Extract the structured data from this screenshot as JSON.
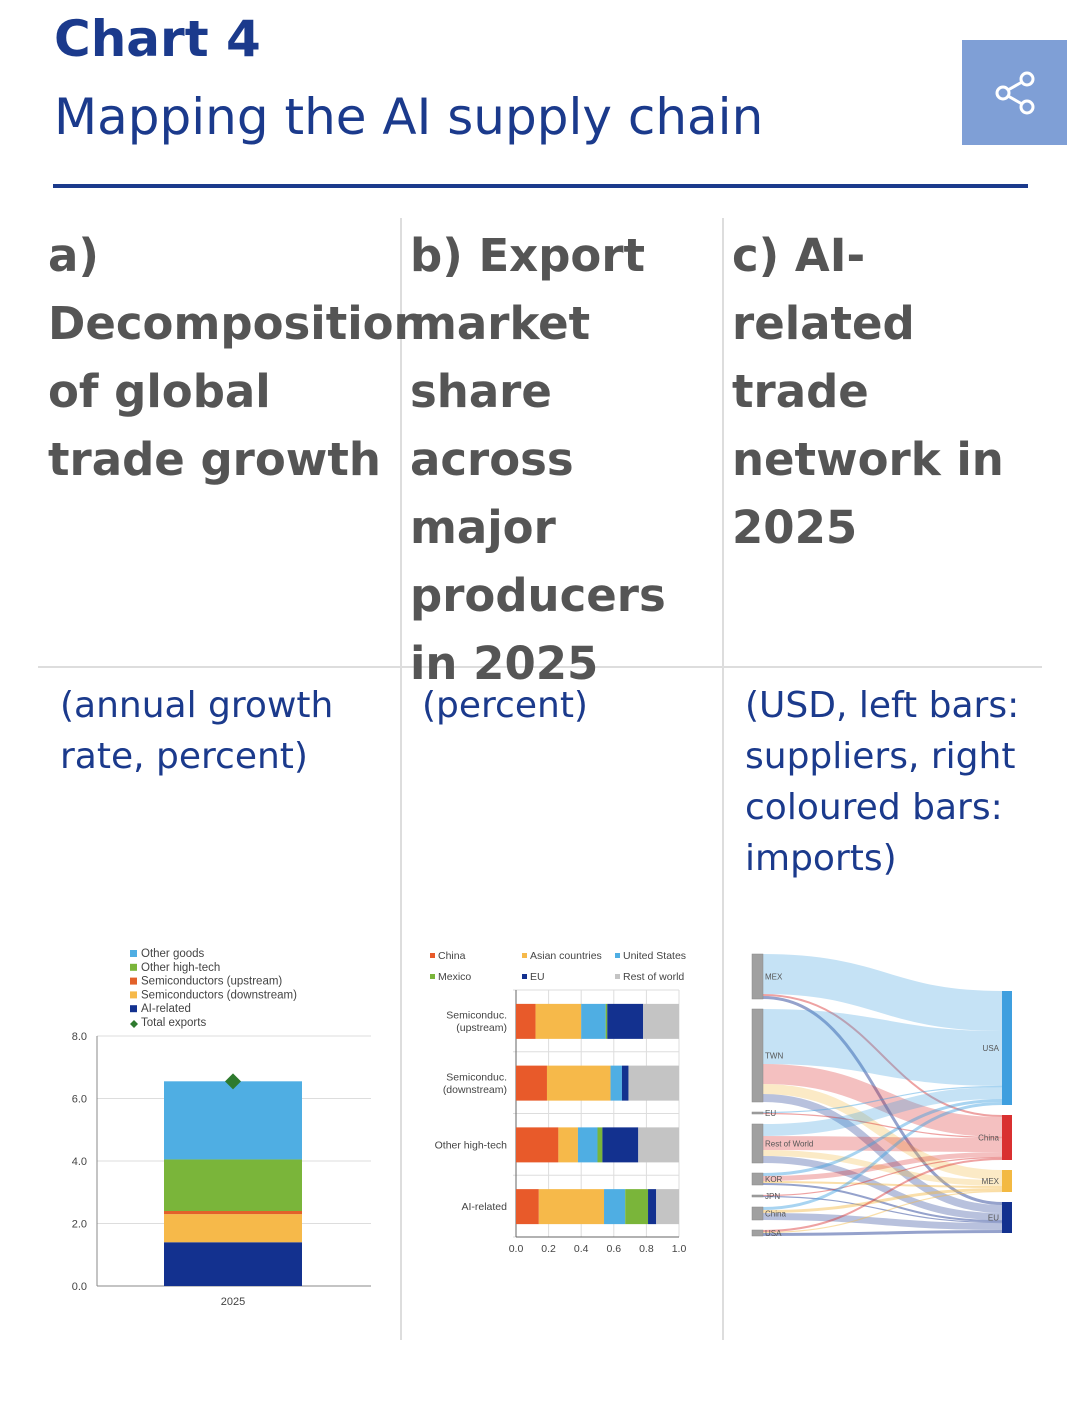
{
  "header": {
    "title": "Chart 4",
    "subtitle": "Mapping the AI supply chain",
    "share_icon": "share-icon",
    "accent": "#1b3a8c"
  },
  "panels": [
    {
      "heading": "a) Decomposition of global trade growth",
      "unit": "(annual growth rate, percent)"
    },
    {
      "heading": "b) Export market share across major producers in 2025",
      "unit": "(percent)"
    },
    {
      "heading": "c) AI-related trade network in 2025",
      "unit": "(USD, left bars: suppliers, right coloured bars: imports)"
    }
  ],
  "chart_data": [
    {
      "type": "bar",
      "stacked": true,
      "categories": [
        "2025"
      ],
      "series": [
        {
          "name": "AI-related",
          "values": [
            1.4
          ],
          "color": "#13318f"
        },
        {
          "name": "Semiconductors (downstream)",
          "values": [
            0.9
          ],
          "color": "#f6b94a"
        },
        {
          "name": "Semiconductors (upstream)",
          "values": [
            0.1
          ],
          "color": "#e2612a"
        },
        {
          "name": "Other high-tech",
          "values": [
            1.65
          ],
          "color": "#7ab53a"
        },
        {
          "name": "Other goods",
          "values": [
            2.5
          ],
          "color": "#4faee3"
        }
      ],
      "markers": [
        {
          "name": "Total exports",
          "values": [
            6.55
          ],
          "color": "#2e7a2e"
        }
      ],
      "legend_order": [
        "Other goods",
        "Other high-tech",
        "Semiconductors (upstream)",
        "Semiconductors (downstream)",
        "AI-related",
        "Total exports"
      ],
      "yticks": [
        "0.0",
        "2.0",
        "4.0",
        "6.0",
        "8.0"
      ],
      "ylim": [
        0,
        8
      ],
      "grid": true,
      "legend": "top-left"
    },
    {
      "type": "bar",
      "orientation": "horizontal",
      "stacked": true,
      "categories": [
        "Semiconduc. (upstream)",
        "Semiconduc. (downstream)",
        "Other high-tech",
        "AI-related"
      ],
      "series": [
        {
          "name": "China",
          "values": [
            0.12,
            0.19,
            0.26,
            0.14
          ],
          "color": "#e85a2a"
        },
        {
          "name": "Asian countries",
          "values": [
            0.28,
            0.39,
            0.12,
            0.4
          ],
          "color": "#f6b94a"
        },
        {
          "name": "United States",
          "values": [
            0.15,
            0.07,
            0.12,
            0.13
          ],
          "color": "#4faee3"
        },
        {
          "name": "Mexico",
          "values": [
            0.01,
            0.0,
            0.03,
            0.14
          ],
          "color": "#7ab53a"
        },
        {
          "name": "EU",
          "values": [
            0.22,
            0.04,
            0.22,
            0.05
          ],
          "color": "#13318f"
        },
        {
          "name": "Rest of world",
          "values": [
            0.22,
            0.31,
            0.25,
            0.14
          ],
          "color": "#c4c4c4"
        }
      ],
      "xticks": [
        "0.0",
        "0.2",
        "0.4",
        "0.6",
        "0.8",
        "1.0"
      ],
      "xlim": [
        0,
        1
      ],
      "grid": true,
      "legend": "top"
    },
    {
      "type": "sankey",
      "sources": [
        "MEX",
        "TWN",
        "EU",
        "Rest of World",
        "KOR",
        "JPN",
        "China",
        "USA"
      ],
      "targets": [
        {
          "name": "USA",
          "color": "#3f9fdf"
        },
        {
          "name": "China",
          "color": "#d93030"
        },
        {
          "name": "MEX",
          "color": "#f3b942"
        },
        {
          "name": "EU",
          "color": "#13318f"
        }
      ],
      "flows": [
        [
          "MEX",
          "USA",
          40
        ],
        [
          "MEX",
          "China",
          2
        ],
        [
          "MEX",
          "EU",
          3
        ],
        [
          "TWN",
          "USA",
          55
        ],
        [
          "TWN",
          "China",
          20
        ],
        [
          "TWN",
          "MEX",
          10
        ],
        [
          "TWN",
          "EU",
          8
        ],
        [
          "EU",
          "USA",
          1
        ],
        [
          "EU",
          "China",
          1
        ],
        [
          "Rest of World",
          "USA",
          12
        ],
        [
          "Rest of World",
          "China",
          14
        ],
        [
          "Rest of World",
          "MEX",
          6
        ],
        [
          "Rest of World",
          "EU",
          7
        ],
        [
          "KOR",
          "USA",
          3
        ],
        [
          "KOR",
          "China",
          5
        ],
        [
          "KOR",
          "MEX",
          2
        ],
        [
          "KOR",
          "EU",
          2
        ],
        [
          "JPN",
          "China",
          1
        ],
        [
          "JPN",
          "EU",
          1
        ],
        [
          "China",
          "USA",
          3
        ],
        [
          "China",
          "MEX",
          3
        ],
        [
          "China",
          "EU",
          7
        ],
        [
          "USA",
          "China",
          2
        ],
        [
          "USA",
          "MEX",
          1
        ],
        [
          "USA",
          "EU",
          3
        ]
      ]
    }
  ]
}
